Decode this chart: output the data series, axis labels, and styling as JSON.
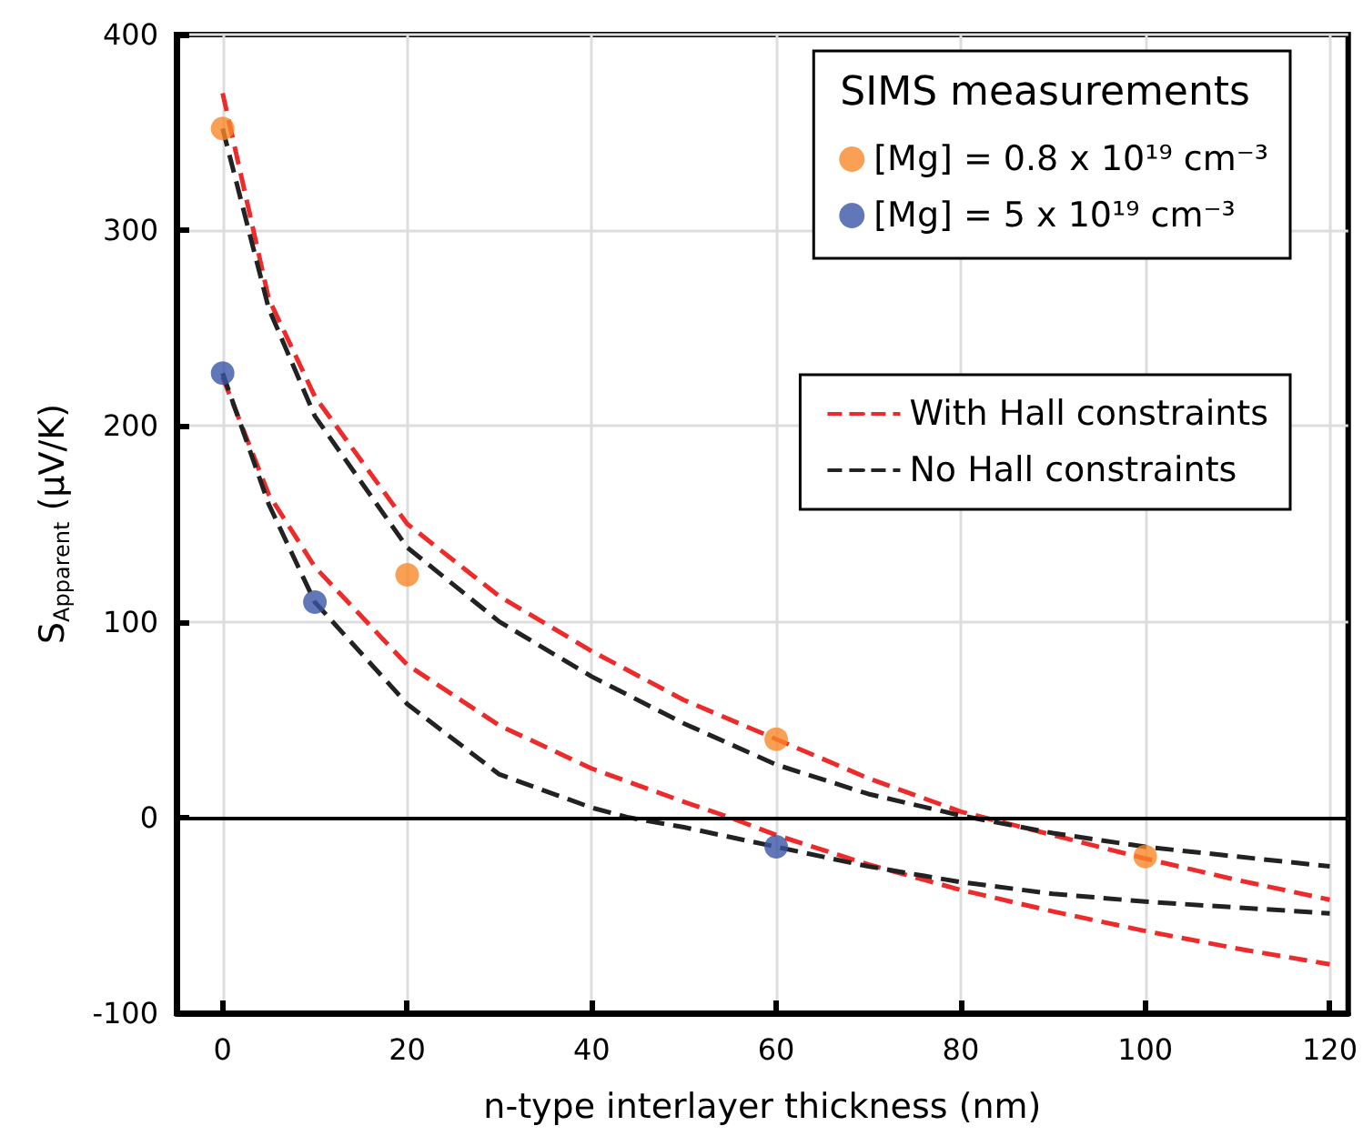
{
  "chart_data": {
    "type": "line",
    "xlabel": "n-type interlayer thickness (nm)",
    "ylabel": "S$_{Apparent}$ (μV/K)",
    "legend_title": "SIMS measurements",
    "xlim": [
      -5,
      122
    ],
    "xticks": [
      0,
      20,
      40,
      60,
      80,
      100,
      120
    ],
    "ylim": [
      -100,
      400
    ],
    "yticks": [
      -100,
      0,
      100,
      200,
      300,
      400
    ],
    "grid": true,
    "legend": "top right",
    "line_style": "dashed",
    "marker": "none",
    "ref_lines": [
      {
        "axis": "y",
        "value": 0,
        "color": "#000000",
        "line_style": "solid"
      }
    ],
    "series": [
      {
        "name": "[Mg] = 0.8 x 10¹⁹ cm⁻³",
        "type": "scatter",
        "color": "#f7882a",
        "marker": "circle",
        "x": [
          0,
          20,
          60,
          100
        ],
        "values": [
          352,
          124,
          40,
          -20
        ]
      },
      {
        "name": "[Mg] = 5 x 10¹⁹ cm⁻³",
        "type": "scatter",
        "color": "#3a55a5",
        "marker": "circle",
        "x": [
          0,
          10,
          60
        ],
        "values": [
          227,
          110,
          -15
        ]
      },
      {
        "name": "With Hall constraints",
        "color": "#ee2a2a",
        "x": [
          0,
          5,
          10,
          20,
          30,
          40,
          50,
          60,
          70,
          80,
          90,
          100,
          110,
          120
        ],
        "values": [
          370,
          265,
          215,
          150,
          113,
          85,
          60,
          40,
          20,
          3,
          -9,
          -21,
          -32,
          -42
        ]
      },
      {
        "name": "No Hall constraints",
        "color": "#222222",
        "x": [
          0,
          5,
          10,
          20,
          30,
          40,
          50,
          60,
          70,
          80,
          90,
          100,
          110,
          120
        ],
        "values": [
          352,
          260,
          205,
          138,
          100,
          72,
          48,
          27,
          12,
          1,
          -8,
          -15,
          -20,
          -25
        ]
      },
      {
        "color": "#ee2a2a",
        "x": [
          0,
          5,
          10,
          20,
          30,
          40,
          50,
          55,
          60,
          70,
          80,
          90,
          100,
          110,
          120
        ],
        "values": [
          225,
          165,
          128,
          78,
          47,
          25,
          8,
          0,
          -9,
          -24,
          -37,
          -48,
          -58,
          -67,
          -75
        ]
      },
      {
        "color": "#222222",
        "x": [
          0,
          5,
          10,
          20,
          30,
          40,
          44,
          50,
          60,
          70,
          80,
          90,
          100,
          110,
          120
        ],
        "values": [
          227,
          160,
          110,
          58,
          22,
          5,
          0,
          -5,
          -15,
          -25,
          -33,
          -39,
          -43,
          -46,
          -49
        ]
      }
    ]
  }
}
